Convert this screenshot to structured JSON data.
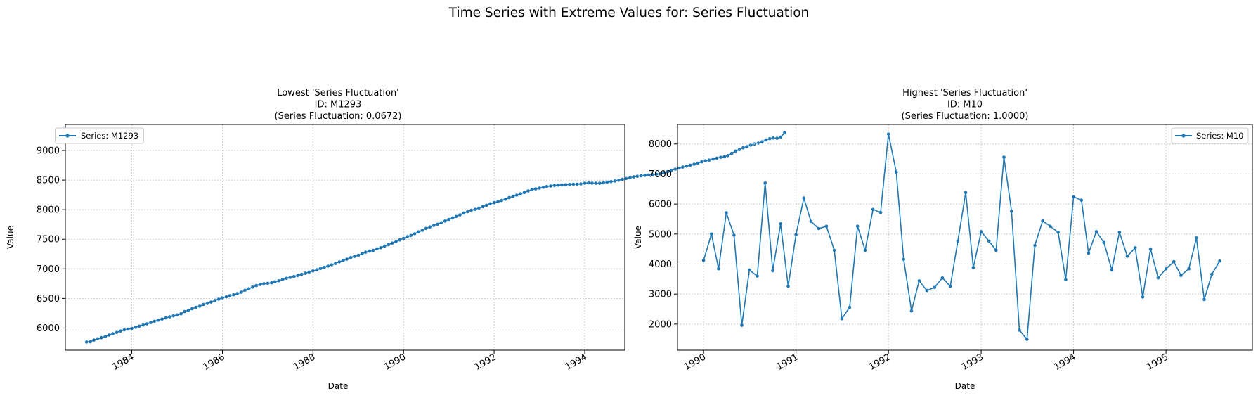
{
  "figure": {
    "title": "Time Series with Extreme Values for: Series Fluctuation"
  },
  "colors": {
    "series": "#1f77b4",
    "grid": "#cccccc",
    "axis": "#000000",
    "legend_border": "#cccccc"
  },
  "chart_data": [
    {
      "type": "line",
      "title_lines": [
        "Lowest 'Series Fluctuation'",
        "ID: M1293",
        "(Series Fluctuation: 0.0672)"
      ],
      "xlabel": "Date",
      "ylabel": "Value",
      "xlim": [
        "1982-07-14",
        "1994-11-20"
      ],
      "ylim": [
        5625,
        9440
      ],
      "xticks": [
        "1984",
        "1986",
        "1988",
        "1990",
        "1992",
        "1994"
      ],
      "yticks": [
        6000,
        6500,
        7000,
        7500,
        8000,
        8500,
        9000
      ],
      "legend": "top-left",
      "grid": true,
      "marker": "circle",
      "series": [
        {
          "name": "Series: M1293",
          "start": "1983-01",
          "frequency": "monthly",
          "values": [
            5763,
            5766,
            5796,
            5818,
            5837,
            5856,
            5880,
            5904,
            5926,
            5949,
            5969,
            5981,
            5994,
            6012,
            6032,
            6050,
            6071,
            6092,
            6113,
            6132,
            6152,
            6171,
            6188,
            6206,
            6222,
            6239,
            6277,
            6298,
            6326,
            6350,
            6368,
            6398,
            6416,
            6438,
            6464,
            6488,
            6510,
            6527,
            6546,
            6561,
            6582,
            6604,
            6637,
            6663,
            6691,
            6717,
            6737,
            6749,
            6755,
            6765,
            6780,
            6798,
            6821,
            6840,
            6855,
            6870,
            6888,
            6906,
            6925,
            6945,
            6965,
            6985,
            7005,
            7025,
            7046,
            7069,
            7092,
            7118,
            7144,
            7164,
            7190,
            7210,
            7230,
            7256,
            7282,
            7300,
            7311,
            7339,
            7357,
            7385,
            7408,
            7435,
            7460,
            7489,
            7515,
            7543,
            7565,
            7593,
            7625,
            7651,
            7684,
            7708,
            7735,
            7753,
            7779,
            7807,
            7835,
            7860,
            7885,
            7912,
            7942,
            7966,
            7990,
            8005,
            8027,
            8049,
            8075,
            8099,
            8119,
            8137,
            8155,
            8177,
            8203,
            8224,
            8246,
            8268,
            8290,
            8317,
            8339,
            8351,
            8364,
            8379,
            8392,
            8400,
            8409,
            8414,
            8418,
            8421,
            8426,
            8430,
            8431,
            8436,
            8448,
            8453,
            8449,
            8446,
            8447,
            8453,
            8466,
            8474,
            8484,
            8497,
            8513,
            8526,
            8540,
            8553,
            8564,
            8572,
            8580,
            8586,
            8591,
            8599,
            8604,
            8623,
            8644,
            8665,
            8685,
            8703,
            8720,
            8735,
            8752,
            8768,
            8786,
            8809,
            8826,
            8838,
            8856,
            8870,
            8884,
            8894,
            8913,
            8951,
            8990,
            9016,
            9045,
            9066,
            9091,
            9111,
            9125,
            9146,
            9179,
            9200,
            9212,
            9207,
            9227,
            9300
          ]
        }
      ]
    },
    {
      "type": "line",
      "title_lines": [
        "Highest 'Series Fluctuation'",
        "ID: M10",
        "(Series Fluctuation: 1.0000)"
      ],
      "xlabel": "Date",
      "ylabel": "Value",
      "xlim": [
        "1989-09-20",
        "1995-12-08"
      ],
      "ylim": [
        1130,
        8650
      ],
      "xticks": [
        "1990",
        "1991",
        "1992",
        "1993",
        "1994",
        "1995"
      ],
      "yticks": [
        2000,
        3000,
        4000,
        5000,
        6000,
        7000,
        8000
      ],
      "legend": "top-right",
      "grid": true,
      "marker": "circle",
      "series": [
        {
          "name": "Series: M10",
          "start": "1990-01",
          "frequency": "monthly",
          "values": [
            4120,
            5000,
            3840,
            5710,
            4960,
            1960,
            3800,
            3600,
            6700,
            3780,
            5340,
            3260,
            4980,
            6200,
            5420,
            5180,
            5260,
            4460,
            2180,
            2560,
            5260,
            4460,
            5820,
            5720,
            8330,
            7060,
            4160,
            2440,
            3440,
            3120,
            3220,
            3540,
            3260,
            4760,
            6380,
            3880,
            5080,
            4760,
            4460,
            7560,
            5760,
            1800,
            1490,
            4620,
            5440,
            5260,
            5060,
            3480,
            6240,
            6130,
            4360,
            5080,
            4720,
            3800,
            5060,
            4260,
            4540,
            2900,
            4500,
            3540,
            3840,
            4080,
            3620,
            3840,
            4870,
            2820,
            3660,
            4100
          ]
        }
      ]
    }
  ]
}
